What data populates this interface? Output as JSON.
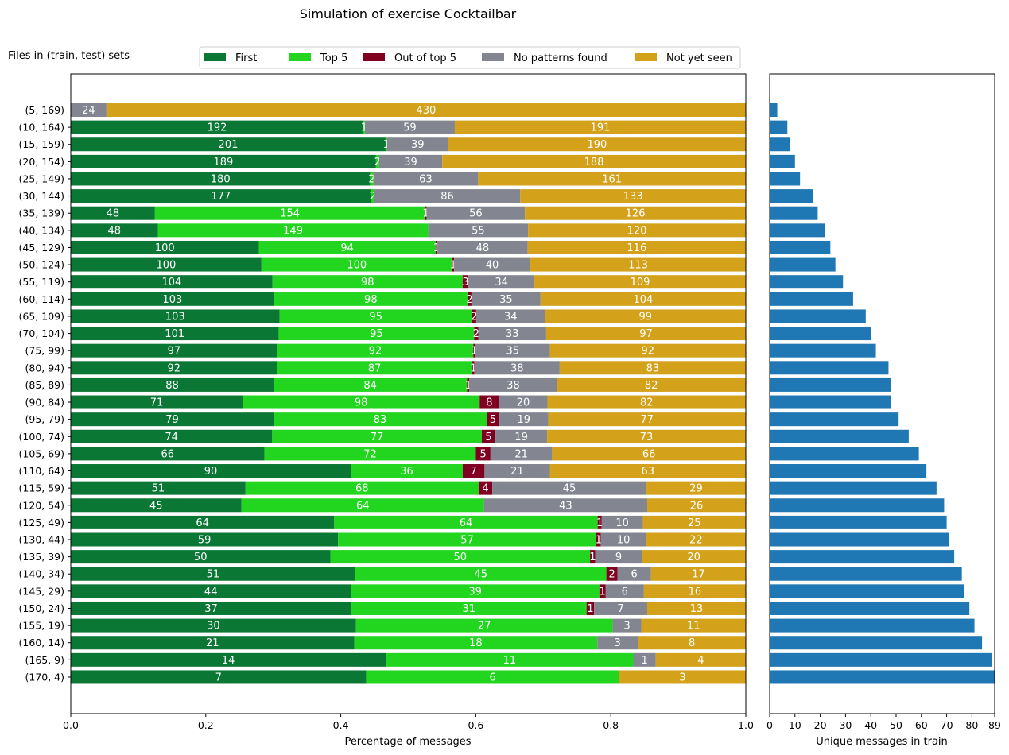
{
  "chart_data": {
    "type": "bar",
    "title": "Simulation of exercise Cocktailbar",
    "row_header": "Files in (train, test) sets",
    "left_panel": {
      "orientation": "horizontal-stacked",
      "xlabel": "Percentage of messages",
      "xlim": [
        0,
        1
      ],
      "xticks": [
        "0.0",
        "0.2",
        "0.4",
        "0.6",
        "0.8",
        "1.0"
      ],
      "legend_position": "top",
      "series": [
        {
          "name": "First",
          "color": "#0b7734",
          "values": [
            0,
            192,
            201,
            189,
            180,
            177,
            48,
            48,
            100,
            100,
            104,
            103,
            103,
            101,
            97,
            92,
            88,
            71,
            79,
            74,
            66,
            90,
            51,
            45,
            64,
            59,
            50,
            51,
            44,
            37,
            30,
            21,
            14,
            7
          ]
        },
        {
          "name": "Top 5",
          "color": "#22d61f",
          "values": [
            0,
            1,
            1,
            2,
            2,
            2,
            154,
            149,
            94,
            100,
            98,
            98,
            95,
            95,
            92,
            87,
            84,
            98,
            83,
            77,
            72,
            36,
            68,
            64,
            64,
            57,
            50,
            45,
            39,
            31,
            27,
            18,
            11,
            6
          ]
        },
        {
          "name": "Out of top 5",
          "color": "#7f0020",
          "values": [
            0,
            0,
            0,
            0,
            0,
            0,
            1,
            0,
            1,
            1,
            3,
            2,
            2,
            2,
            1,
            1,
            1,
            8,
            5,
            5,
            5,
            7,
            4,
            0,
            1,
            1,
            1,
            2,
            1,
            1,
            0,
            0,
            0,
            0
          ]
        },
        {
          "name": "No patterns found",
          "color": "#838690",
          "values": [
            24,
            59,
            39,
            39,
            63,
            86,
            56,
            55,
            48,
            40,
            34,
            35,
            34,
            33,
            35,
            38,
            38,
            20,
            19,
            19,
            21,
            21,
            45,
            43,
            10,
            10,
            9,
            6,
            6,
            7,
            3,
            3,
            1,
            0
          ]
        },
        {
          "name": "Not yet seen",
          "color": "#d4a11b",
          "values": [
            430,
            191,
            190,
            188,
            161,
            133,
            126,
            120,
            116,
            113,
            109,
            104,
            99,
            97,
            92,
            83,
            82,
            82,
            77,
            73,
            66,
            63,
            29,
            26,
            25,
            22,
            20,
            17,
            16,
            13,
            11,
            8,
            4,
            3
          ]
        }
      ]
    },
    "categories": [
      "(5, 169)",
      "(10, 164)",
      "(15, 159)",
      "(20, 154)",
      "(25, 149)",
      "(30, 144)",
      "(35, 139)",
      "(40, 134)",
      "(45, 129)",
      "(50, 124)",
      "(55, 119)",
      "(60, 114)",
      "(65, 109)",
      "(70, 104)",
      "(75, 99)",
      "(80, 94)",
      "(85, 89)",
      "(90, 84)",
      "(95, 79)",
      "(100, 74)",
      "(105, 69)",
      "(110, 64)",
      "(115, 59)",
      "(120, 54)",
      "(125, 49)",
      "(130, 44)",
      "(135, 39)",
      "(140, 34)",
      "(145, 29)",
      "(150, 24)",
      "(155, 19)",
      "(160, 14)",
      "(165, 9)",
      "(170, 4)"
    ],
    "right_panel": {
      "orientation": "horizontal",
      "xlabel": "Unique messages in train",
      "xlim": [
        0,
        89
      ],
      "xticks": [
        "0",
        "10",
        "20",
        "30",
        "40",
        "50",
        "60",
        "70",
        "80",
        "89"
      ],
      "color": "#1f77b4",
      "values": [
        3,
        7,
        8,
        10,
        12,
        17,
        19,
        22,
        24,
        26,
        29,
        33,
        38,
        40,
        42,
        47,
        48,
        48,
        51,
        55,
        59,
        62,
        66,
        69,
        70,
        71,
        73,
        76,
        77,
        79,
        81,
        84,
        88,
        89
      ]
    }
  }
}
